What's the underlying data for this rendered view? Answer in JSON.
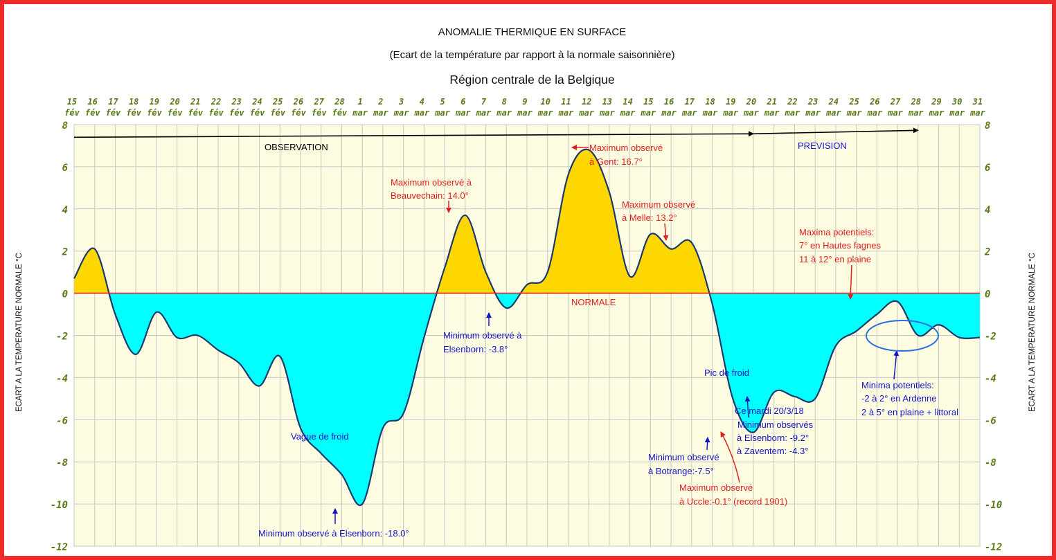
{
  "chart_data": {
    "type": "area",
    "title": "ANOMALIE THERMIQUE EN SURFACE",
    "subtitle": "(Ecart de la température par rapport à la normale saisonnière)",
    "region": "Région centrale de la Belgique",
    "ylabel": "ECART A LA TEMPERATURE NORMALE °C",
    "ylim": [
      -12,
      8
    ],
    "yticks": [
      "8",
      "6",
      "4",
      "2",
      "0",
      "-2",
      "-4",
      "-6",
      "-8",
      "-10",
      "-12"
    ],
    "ytick_values": [
      8,
      6,
      4,
      2,
      0,
      -2,
      -4,
      -6,
      -8,
      -10,
      -12
    ],
    "x_days": [
      "15",
      "16",
      "17",
      "18",
      "19",
      "20",
      "21",
      "22",
      "23",
      "24",
      "25",
      "26",
      "27",
      "28",
      "1",
      "2",
      "3",
      "4",
      "5",
      "6",
      "7",
      "8",
      "9",
      "10",
      "11",
      "12",
      "13",
      "14",
      "15",
      "16",
      "17",
      "18",
      "19",
      "20",
      "21",
      "22",
      "23",
      "24",
      "25",
      "26",
      "27",
      "28",
      "29",
      "30",
      "31"
    ],
    "x_months": [
      "fév",
      "fév",
      "fév",
      "fév",
      "fév",
      "fév",
      "fév",
      "fév",
      "fév",
      "fév",
      "fév",
      "fév",
      "fév",
      "fév",
      "mar",
      "mar",
      "mar",
      "mar",
      "mar",
      "mar",
      "mar",
      "mar",
      "mar",
      "mar",
      "mar",
      "mar",
      "mar",
      "mar",
      "mar",
      "mar",
      "mar",
      "mar",
      "mar",
      "mar",
      "mar",
      "mar",
      "mar",
      "mar",
      "mar",
      "mar",
      "mar",
      "mar",
      "mar",
      "mar",
      "mar"
    ],
    "series": [
      {
        "values": [
          0.7,
          2.1,
          -1.0,
          -2.9,
          -0.9,
          -2.1,
          -2.0,
          -2.7,
          -3.3,
          -4.4,
          -3.0,
          -6.4,
          -7.6,
          -8.6,
          -10.0,
          -6.4,
          -5.7,
          -2.1,
          1.2,
          3.7,
          1.0,
          -0.7,
          0.4,
          1.0,
          5.6,
          6.8,
          4.8,
          0.8,
          2.8,
          2.1,
          2.4,
          -0.5,
          -5.0,
          -6.6,
          -4.7,
          -4.9,
          -5.0,
          -2.5,
          -1.8,
          -1.0,
          -0.4,
          -2.0,
          -1.5,
          -2.1,
          -2.1
        ],
        "positive_color": "#ffd700",
        "negative_color": "#00ffff",
        "line_color": "#1a3a6b"
      }
    ],
    "normal_label": "NORMALE",
    "normal_color": "#ee2222",
    "phase_labels": {
      "observation": "OBSERVATION",
      "prevision": "PREVISION"
    },
    "annotations": {
      "vague_froid": "Vague de froid",
      "pic_froid": "Pic de froid",
      "min_elsenborn_18": "Minimum observé à Elsenborn: -18.0°",
      "max_beauvechain_1": "Maximum observé à",
      "max_beauvechain_2": "Beauvechain: 14.0°",
      "min_elsenborn_38_1": "Minimum observé à",
      "min_elsenborn_38_2": "Elsenborn: -3.8°",
      "max_gent_1": "Maximum observé",
      "max_gent_2": "à Gent: 16.7°",
      "max_melle_1": "Maximum observé",
      "max_melle_2": "à Melle: 13.2°",
      "maxima_pot_1": "Maxima potentiels:",
      "maxima_pot_2": "7° en Hautes fagnes",
      "maxima_pot_3": "11 à 12° en plaine",
      "min_botrange_1": "Minimum observé",
      "min_botrange_2": "à Botrange:-7.5°",
      "max_uccle_1": "Maximum observé",
      "max_uccle_2": "à Uccle:-0.1° (record 1901)",
      "ce_mardi_1": "Ce  mardi 20/3/18",
      "ce_mardi_2": "Minimum observés",
      "ce_mardi_3": "à Elsenborn: -9.2°",
      "ce_mardi_4": "à Zaventem: -4.3°",
      "minima_pot_1": "Minima potentiels:",
      "minima_pot_2": "-2 à 2° en Ardenne",
      "minima_pot_3": "2 à 5° en plaine + littoral"
    },
    "colors": {
      "plot_background": "#fdfbe0",
      "grid": "#c8c8c8",
      "tick_text": "#5a7a16",
      "red_text": "#e02020",
      "blue_text": "#1515c8",
      "frame": "#ee2a2a"
    }
  }
}
